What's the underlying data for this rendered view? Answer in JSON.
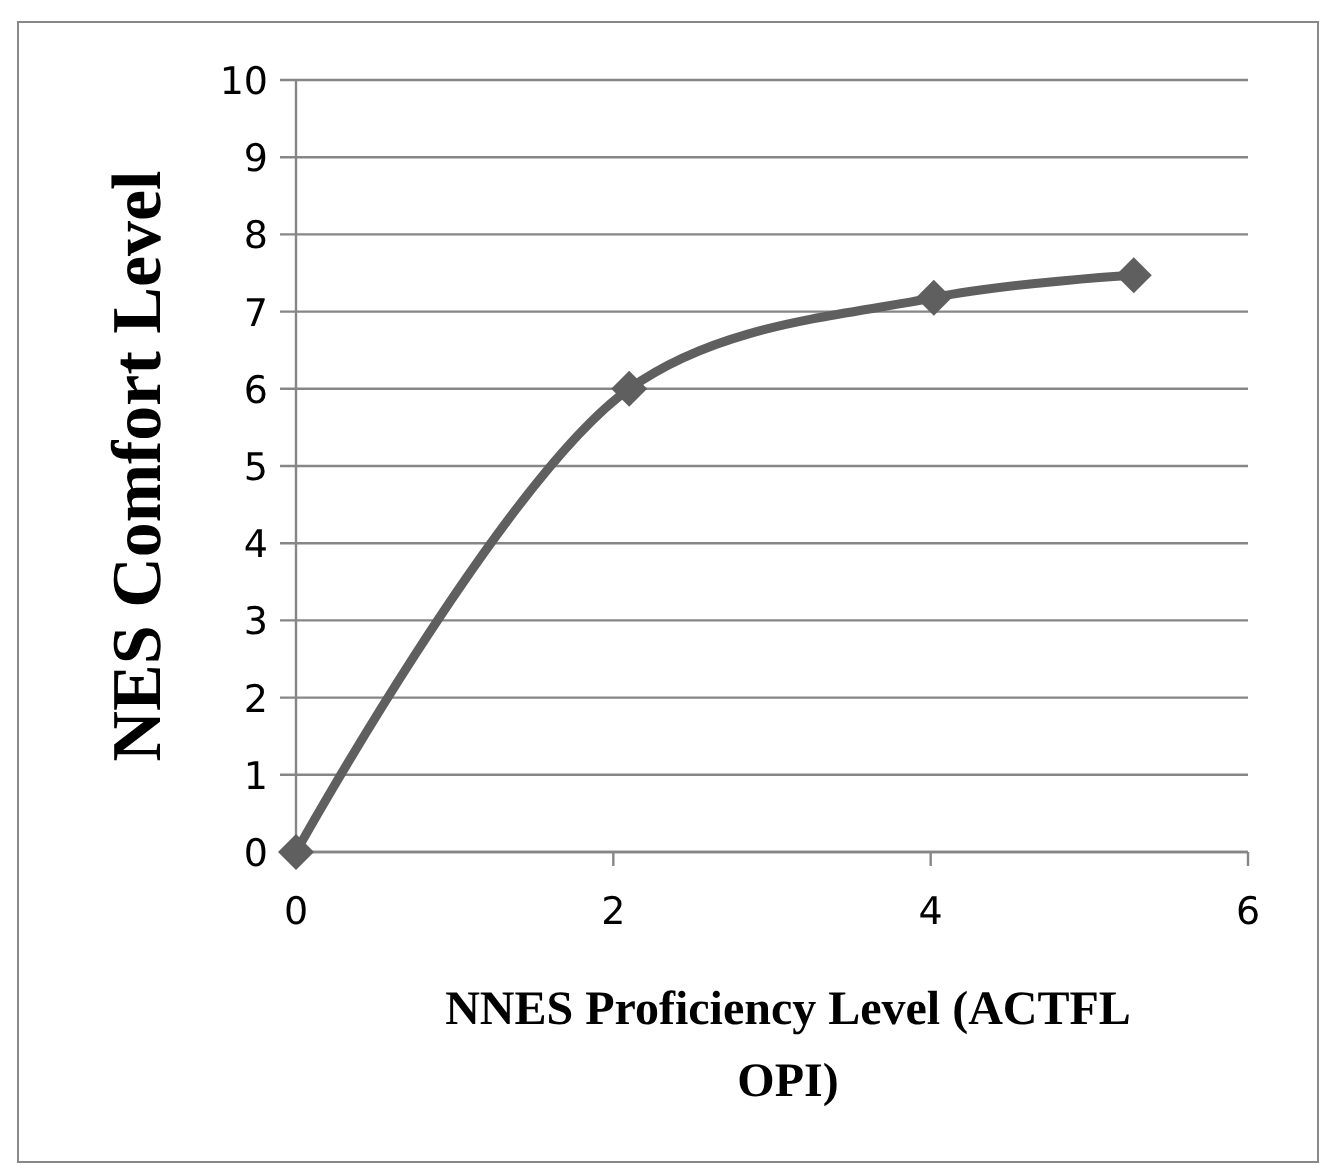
{
  "chart_data": {
    "type": "line",
    "xlabel": "NNES Proficiency Level (ACTFL OPI)",
    "ylabel": "NES Comfort Level",
    "x": [
      0,
      2.1,
      4.02,
      5.28
    ],
    "series": [
      {
        "color": "#5f5f5f",
        "values": [
          0,
          6.0,
          7.18,
          7.47
        ]
      }
    ],
    "xlim": [
      0,
      6
    ],
    "xticks": [
      0,
      2,
      4,
      6
    ],
    "ylim": [
      0,
      10
    ],
    "yticks": [
      0,
      1,
      2,
      3,
      4,
      5,
      6,
      7,
      8,
      9,
      10
    ],
    "grid": "y",
    "marker": "diamond",
    "line_style": "solid"
  }
}
